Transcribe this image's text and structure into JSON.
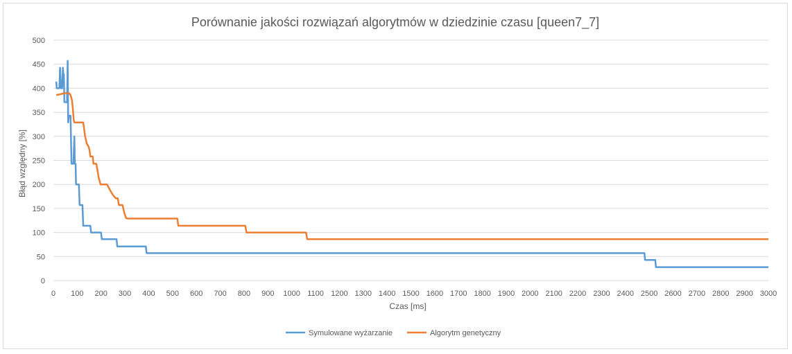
{
  "chart_data": {
    "type": "line",
    "title": "Porównanie jakości rozwiązań algorytmów w dziedzinie czasu [queen7_7]",
    "xlabel": "Czas [ms]",
    "ylabel": "Błąd względny [%]",
    "xlim": [
      0,
      3000
    ],
    "ylim": [
      0,
      500
    ],
    "x_ticks": [
      0,
      100,
      200,
      300,
      400,
      500,
      600,
      700,
      800,
      900,
      1000,
      1100,
      1200,
      1300,
      1400,
      1500,
      1600,
      1700,
      1800,
      1900,
      2000,
      2100,
      2200,
      2300,
      2400,
      2500,
      2600,
      2700,
      2800,
      2900,
      3000
    ],
    "y_ticks": [
      0,
      50,
      100,
      150,
      200,
      250,
      300,
      350,
      400,
      450,
      500
    ],
    "grid": "horizontal",
    "legend_position": "bottom",
    "series": [
      {
        "name": "Symulowane wyżarzanie",
        "color": "#5b9bd5",
        "points": [
          [
            12,
            414
          ],
          [
            14,
            400
          ],
          [
            25,
            400
          ],
          [
            28,
            443
          ],
          [
            32,
            400
          ],
          [
            37,
            400
          ],
          [
            40,
            443
          ],
          [
            42,
            429
          ],
          [
            44,
            429
          ],
          [
            46,
            371
          ],
          [
            57,
            371
          ],
          [
            60,
            457
          ],
          [
            62,
            329
          ],
          [
            65,
            343
          ],
          [
            72,
            343
          ],
          [
            76,
            243
          ],
          [
            84,
            243
          ],
          [
            88,
            300
          ],
          [
            90,
            243
          ],
          [
            93,
            243
          ],
          [
            95,
            200
          ],
          [
            107,
            200
          ],
          [
            110,
            157
          ],
          [
            122,
            157
          ],
          [
            125,
            114
          ],
          [
            155,
            114
          ],
          [
            158,
            100
          ],
          [
            200,
            100
          ],
          [
            203,
            86
          ],
          [
            265,
            86
          ],
          [
            268,
            71
          ],
          [
            388,
            71
          ],
          [
            391,
            57
          ],
          [
            2480,
            57
          ],
          [
            2482,
            43
          ],
          [
            2525,
            43
          ],
          [
            2528,
            28
          ],
          [
            3000,
            28
          ]
        ]
      },
      {
        "name": "Algorytm genetyczny",
        "color": "#ed7d31",
        "points": [
          [
            12,
            386
          ],
          [
            25,
            387
          ],
          [
            40,
            389
          ],
          [
            55,
            390
          ],
          [
            65,
            390
          ],
          [
            72,
            386
          ],
          [
            78,
            375
          ],
          [
            82,
            355
          ],
          [
            85,
            335
          ],
          [
            88,
            329
          ],
          [
            125,
            329
          ],
          [
            133,
            300
          ],
          [
            140,
            285
          ],
          [
            148,
            278
          ],
          [
            152,
            270
          ],
          [
            155,
            258
          ],
          [
            165,
            258
          ],
          [
            168,
            243
          ],
          [
            180,
            243
          ],
          [
            185,
            229
          ],
          [
            190,
            214
          ],
          [
            198,
            200
          ],
          [
            225,
            200
          ],
          [
            240,
            186
          ],
          [
            250,
            178
          ],
          [
            262,
            171
          ],
          [
            270,
            171
          ],
          [
            275,
            157
          ],
          [
            290,
            157
          ],
          [
            298,
            140
          ],
          [
            305,
            130
          ],
          [
            312,
            129
          ],
          [
            520,
            129
          ],
          [
            524,
            114
          ],
          [
            805,
            114
          ],
          [
            810,
            100
          ],
          [
            1060,
            100
          ],
          [
            1065,
            86
          ],
          [
            3000,
            86
          ]
        ]
      }
    ]
  }
}
